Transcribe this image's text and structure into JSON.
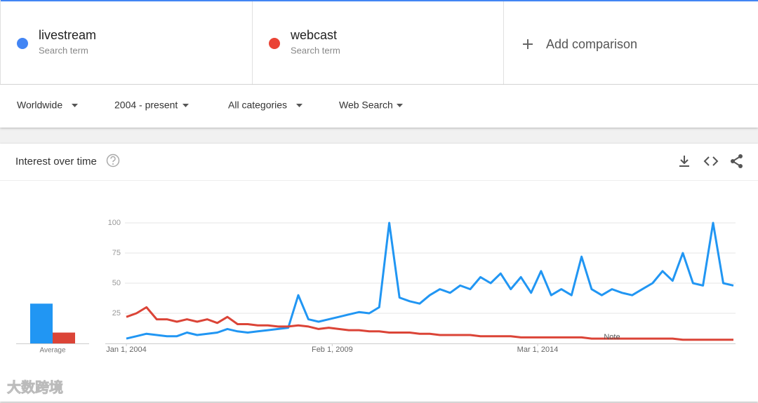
{
  "comparison": {
    "subtitles": [
      "Search term",
      "Search term"
    ],
    "add": "Add comparison"
  },
  "filters": [
    "Worldwide",
    "2004 - present",
    "All categories",
    "Web Search"
  ],
  "card_title": "Interest over time",
  "watermark": "大数跨境",
  "chart_data": [
    {
      "type": "line",
      "x": [
        "2004-01-01",
        "2004-04-01",
        "2004-07-01",
        "2004-10-01",
        "2005-01-01",
        "2005-04-01",
        "2005-07-01",
        "2005-10-01",
        "2006-01-01",
        "2006-04-01",
        "2006-07-01",
        "2006-10-01",
        "2007-01-01",
        "2007-04-01",
        "2007-07-01",
        "2007-10-01",
        "2008-01-01",
        "2008-04-01",
        "2008-07-01",
        "2008-10-01",
        "2009-01-01",
        "2009-04-01",
        "2009-07-01",
        "2009-10-01",
        "2010-01-01",
        "2010-04-01",
        "2010-07-01",
        "2010-10-01",
        "2011-01-01",
        "2011-04-01",
        "2011-07-01",
        "2011-10-01",
        "2012-01-01",
        "2012-04-01",
        "2012-07-01",
        "2012-10-01",
        "2013-01-01",
        "2013-04-01",
        "2013-07-01",
        "2013-10-01",
        "2014-01-01",
        "2014-04-01",
        "2014-07-01",
        "2014-10-01",
        "2015-01-01",
        "2015-04-01",
        "2015-07-01",
        "2015-10-01",
        "2016-01-01",
        "2016-04-01",
        "2016-07-01",
        "2016-10-01",
        "2017-01-01",
        "2017-04-01",
        "2017-07-01",
        "2017-10-01",
        "2018-01-01",
        "2018-04-01",
        "2018-07-01",
        "2018-10-01",
        "2019-01-01"
      ],
      "series": [
        {
          "name": "livestream",
          "color": "#2196f3",
          "values": [
            4,
            6,
            8,
            7,
            6,
            6,
            9,
            7,
            8,
            9,
            12,
            10,
            9,
            10,
            11,
            12,
            13,
            40,
            20,
            18,
            20,
            22,
            24,
            26,
            25,
            30,
            100,
            38,
            35,
            33,
            40,
            45,
            42,
            48,
            45,
            55,
            50,
            58,
            45,
            55,
            42,
            60,
            40,
            45,
            40,
            72,
            45,
            40,
            45,
            42,
            40,
            45,
            50,
            60,
            52,
            75,
            50,
            48,
            100,
            50,
            48
          ]
        },
        {
          "name": "webcast",
          "color": "#db4437",
          "values": [
            22,
            25,
            30,
            20,
            20,
            18,
            20,
            18,
            20,
            17,
            22,
            16,
            16,
            15,
            15,
            14,
            14,
            15,
            14,
            12,
            13,
            12,
            11,
            11,
            10,
            10,
            9,
            9,
            9,
            8,
            8,
            7,
            7,
            7,
            7,
            6,
            6,
            6,
            6,
            5,
            5,
            5,
            5,
            5,
            5,
            5,
            4,
            4,
            4,
            4,
            4,
            4,
            4,
            4,
            4,
            3,
            3,
            3,
            3,
            3,
            3
          ]
        }
      ],
      "xlim": [
        "2004-01-01",
        "2019-01-01"
      ],
      "xticks": [
        {
          "value": "2004-01-01",
          "label": "Jan 1, 2004"
        },
        {
          "value": "2009-02-01",
          "label": "Feb 1, 2009"
        },
        {
          "value": "2014-03-01",
          "label": "Mar 1, 2014"
        }
      ],
      "ylim": [
        0,
        100
      ],
      "yticks": [
        25,
        50,
        75,
        100
      ],
      "grid": true,
      "annotations": [
        {
          "text": "Note",
          "x": "2016-01-01"
        }
      ]
    },
    {
      "type": "bar",
      "categories": [
        null,
        null
      ],
      "values": [
        33,
        9
      ],
      "colors": [
        "#2196f3",
        "#db4437"
      ],
      "xlabel": "Average",
      "ylim": [
        0,
        100
      ]
    }
  ]
}
